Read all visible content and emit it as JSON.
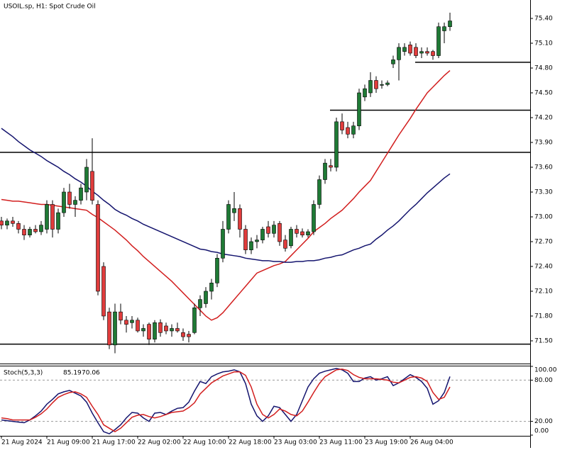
{
  "chart_data": [
    {
      "type": "candlestick",
      "title": "USOIL.sp, H1:  Spot Crude Oil",
      "categories": [
        "21 Aug 2024",
        null,
        null,
        null,
        null,
        null,
        null,
        null,
        "21 Aug 09:00",
        null,
        null,
        null,
        null,
        null,
        null,
        null,
        "21 Aug 17:00",
        null,
        null,
        null,
        null,
        null,
        null,
        null,
        "22 Aug 02:00",
        null,
        null,
        null,
        null,
        null,
        null,
        null,
        "22 Aug 10:00",
        null,
        null,
        null,
        null,
        null,
        null,
        null,
        "22 Aug 18:00",
        null,
        null,
        null,
        null,
        null,
        null,
        null,
        "23 Aug 03:00",
        null,
        null,
        null,
        null,
        null,
        null,
        null,
        "23 Aug 11:00",
        null,
        null,
        null,
        null,
        null,
        null,
        null,
        "23 Aug 19:00",
        null,
        null,
        null,
        null,
        null,
        null,
        null,
        "26 Aug 04:00",
        null,
        null,
        null,
        null,
        null,
        null,
        null
      ],
      "open": [
        72.95,
        72.9,
        72.95,
        72.92,
        72.85,
        72.78,
        72.85,
        72.82,
        72.85,
        73.15,
        72.85,
        73.05,
        73.3,
        73.15,
        73.2,
        73.3,
        73.55,
        73.15,
        72.4,
        71.85,
        71.45,
        71.85,
        71.75,
        71.72,
        71.75,
        71.62,
        71.7,
        71.52,
        71.72,
        71.68,
        71.62,
        71.65,
        71.6,
        71.58,
        71.6,
        71.9,
        71.95,
        72.1,
        72.2,
        72.5,
        72.85,
        73.05,
        73.1,
        72.85,
        72.6,
        72.7,
        72.72,
        72.88,
        72.8,
        72.92,
        72.72,
        72.65,
        72.85,
        72.82,
        72.78,
        72.82,
        73.15,
        73.45,
        73.62,
        73.6,
        74.15,
        74.08,
        74.0,
        74.1,
        74.45,
        74.5,
        74.65,
        74.6,
        74.6,
        74.85,
        74.9,
        75.0,
        75.08,
        75.05,
        74.98,
        75.0,
        75.0,
        74.95,
        75.25,
        75.3
      ],
      "high": [
        73.0,
        72.98,
        73.0,
        72.95,
        72.9,
        72.88,
        72.9,
        72.95,
        73.2,
        73.2,
        73.1,
        73.35,
        73.4,
        73.25,
        73.4,
        73.7,
        73.95,
        73.2,
        72.45,
        71.9,
        71.95,
        71.95,
        71.8,
        71.8,
        71.78,
        71.7,
        71.72,
        71.75,
        71.76,
        71.72,
        71.7,
        71.72,
        71.65,
        71.62,
        71.95,
        72.05,
        72.15,
        72.25,
        72.55,
        72.95,
        73.2,
        73.3,
        73.15,
        72.9,
        72.75,
        72.78,
        72.88,
        72.95,
        72.95,
        72.95,
        72.78,
        72.88,
        72.9,
        72.86,
        72.85,
        73.2,
        73.5,
        73.7,
        73.7,
        74.2,
        74.25,
        74.15,
        74.15,
        74.55,
        74.6,
        74.75,
        74.7,
        74.65,
        74.65,
        74.95,
        75.1,
        75.1,
        75.12,
        75.1,
        75.05,
        75.05,
        75.02,
        75.35,
        75.35,
        75.47
      ],
      "low": [
        72.85,
        72.85,
        72.88,
        72.8,
        72.72,
        72.75,
        72.8,
        72.78,
        72.8,
        72.75,
        72.8,
        73.0,
        73.1,
        73.0,
        73.15,
        73.2,
        73.15,
        72.05,
        71.75,
        71.4,
        71.35,
        71.7,
        71.6,
        71.65,
        71.6,
        71.55,
        71.45,
        71.48,
        71.55,
        71.58,
        71.55,
        71.6,
        71.5,
        71.48,
        71.58,
        71.8,
        71.9,
        72.0,
        72.15,
        72.45,
        72.8,
        72.95,
        72.75,
        72.55,
        72.55,
        72.62,
        72.68,
        72.75,
        72.75,
        72.65,
        72.58,
        72.62,
        72.75,
        72.75,
        72.75,
        72.78,
        73.1,
        73.4,
        73.55,
        73.55,
        74.0,
        73.95,
        73.95,
        74.05,
        74.4,
        74.45,
        74.5,
        74.55,
        74.58,
        74.8,
        74.65,
        74.95,
        74.95,
        74.92,
        74.92,
        74.95,
        74.9,
        74.92,
        75.1,
        75.25
      ],
      "close": [
        72.9,
        72.95,
        72.92,
        72.85,
        72.78,
        72.85,
        72.82,
        72.9,
        73.15,
        72.85,
        73.05,
        73.3,
        73.15,
        73.2,
        73.35,
        73.6,
        73.2,
        72.1,
        71.8,
        71.45,
        71.85,
        71.75,
        71.7,
        71.75,
        71.62,
        71.65,
        71.52,
        71.72,
        71.6,
        71.62,
        71.65,
        71.62,
        71.55,
        71.55,
        71.9,
        72.0,
        72.1,
        72.2,
        72.5,
        72.85,
        73.15,
        73.1,
        72.85,
        72.6,
        72.7,
        72.72,
        72.85,
        72.8,
        72.9,
        72.7,
        72.62,
        72.85,
        72.8,
        72.78,
        72.82,
        73.15,
        73.45,
        73.65,
        73.6,
        74.15,
        74.05,
        74.0,
        74.1,
        74.5,
        74.55,
        74.65,
        74.55,
        74.6,
        74.62,
        74.9,
        75.05,
        75.05,
        74.98,
        74.95,
        75.0,
        74.98,
        74.95,
        75.3,
        75.3,
        75.37
      ],
      "up_color": "#1f7a35",
      "down_color": "#e03c3c",
      "lines": [
        {
          "color": "#d21e1e",
          "values": [
            73.21,
            73.2,
            73.19,
            73.19,
            73.18,
            73.17,
            73.16,
            73.15,
            73.15,
            73.14,
            73.13,
            73.12,
            73.11,
            73.1,
            73.09,
            73.08,
            73.03,
            72.99,
            72.94,
            72.89,
            72.84,
            72.78,
            72.72,
            72.65,
            72.59,
            72.52,
            72.46,
            72.4,
            72.34,
            72.28,
            72.22,
            72.15,
            72.08,
            72.01,
            71.94,
            71.87,
            71.8,
            71.75,
            71.78,
            71.84,
            71.92,
            72.0,
            72.08,
            72.16,
            72.24,
            72.32,
            72.35,
            72.38,
            72.41,
            72.43,
            72.46,
            72.53,
            72.6,
            72.67,
            72.74,
            72.82,
            72.87,
            72.92,
            72.98,
            73.03,
            73.08,
            73.15,
            73.22,
            73.3,
            73.37,
            73.44,
            73.55,
            73.66,
            73.77,
            73.88,
            73.99,
            74.09,
            74.19,
            74.3,
            74.4,
            74.5,
            74.57,
            74.64,
            74.71,
            74.77
          ]
        },
        {
          "color": "#14146e",
          "values": [
            74.07,
            74.02,
            73.97,
            73.91,
            73.86,
            73.81,
            73.77,
            73.73,
            73.68,
            73.64,
            73.6,
            73.55,
            73.51,
            73.46,
            73.42,
            73.37,
            73.31,
            73.26,
            73.2,
            73.15,
            73.09,
            73.05,
            73.02,
            72.98,
            72.95,
            72.91,
            72.88,
            72.85,
            72.82,
            72.79,
            72.76,
            72.73,
            72.7,
            72.67,
            72.64,
            72.61,
            72.6,
            72.58,
            72.57,
            72.55,
            72.54,
            72.53,
            72.52,
            72.5,
            72.49,
            72.48,
            72.47,
            72.47,
            72.46,
            72.46,
            72.45,
            72.45,
            72.46,
            72.46,
            72.47,
            72.47,
            72.48,
            72.5,
            72.51,
            72.53,
            72.54,
            72.57,
            72.6,
            72.62,
            72.65,
            72.67,
            72.73,
            72.78,
            72.84,
            72.89,
            72.95,
            73.02,
            73.09,
            73.15,
            73.22,
            73.29,
            73.35,
            73.41,
            73.47,
            73.52
          ]
        }
      ],
      "hlines": [
        {
          "value": 74.87,
          "from": 73
        },
        {
          "value": 74.29,
          "from": 58
        },
        {
          "value": 73.78
        },
        {
          "value": 71.46
        }
      ],
      "ylim": [
        71.234,
        75.623
      ],
      "yticks": [
        {
          "value": 71.5,
          "label": "71.50"
        },
        {
          "value": 71.8,
          "label": "71.80"
        },
        {
          "value": 72.1,
          "label": "72.10"
        },
        {
          "value": 72.4,
          "label": "72.40"
        },
        {
          "value": 72.7,
          "label": "72.70"
        },
        {
          "value": 73.0,
          "label": "73.00"
        },
        {
          "value": 73.3,
          "label": "73.30"
        },
        {
          "value": 73.6,
          "label": "73.60"
        },
        {
          "value": 73.9,
          "label": "73.90"
        },
        {
          "value": 74.2,
          "label": "74.20"
        },
        {
          "value": 74.5,
          "label": "74.50"
        },
        {
          "value": 74.8,
          "label": "74.80"
        },
        {
          "value": 75.1,
          "label": "75.10"
        },
        {
          "value": 75.4,
          "label": "75.40"
        }
      ]
    },
    {
      "type": "line",
      "title": "Stoch(5,3,3)",
      "ylim": [
        0,
        100
      ],
      "yticks": [
        {
          "value": 0,
          "label": "0.00"
        },
        {
          "value": 20,
          "label": "20.00"
        },
        {
          "value": 80,
          "label": "80.00"
        },
        {
          "value": 100,
          "label": "100.00"
        }
      ],
      "grid": "dashed",
      "series": [
        {
          "color": "#14146e",
          "values": [
            22,
            21,
            20,
            19,
            18,
            22,
            28,
            35,
            45,
            52,
            60,
            63,
            65,
            61,
            57,
            48,
            32,
            18,
            5,
            2,
            8,
            15,
            25,
            33,
            32,
            25,
            20,
            32,
            33,
            30,
            35,
            39,
            40,
            48,
            64,
            78,
            75,
            85,
            89,
            92,
            93,
            95,
            92,
            75,
            45,
            28,
            20,
            28,
            42,
            40,
            30,
            20,
            30,
            50,
            70,
            82,
            90,
            93,
            95,
            97,
            95,
            90,
            78,
            78,
            83,
            85,
            80,
            82,
            85,
            72,
            76,
            82,
            88,
            84,
            78,
            68,
            45,
            50,
            62,
            85.19
          ]
        },
        {
          "color": "#d21e1e",
          "values": [
            25,
            24,
            22,
            22,
            22,
            22,
            26,
            31,
            38,
            47,
            55,
            59,
            62,
            63,
            60,
            55,
            42,
            30,
            15,
            10,
            5,
            10,
            18,
            26,
            29,
            30,
            27,
            25,
            27,
            30,
            33,
            34,
            35,
            40,
            47,
            60,
            68,
            76,
            81,
            86,
            89,
            92,
            92,
            87,
            70,
            45,
            30,
            25,
            30,
            38,
            35,
            30,
            28,
            35,
            48,
            62,
            75,
            85,
            90,
            95,
            96,
            94,
            88,
            84,
            82,
            82,
            82,
            81,
            80,
            77,
            76,
            80,
            84,
            85,
            83,
            78,
            62,
            52,
            55,
            70.06
          ]
        }
      ]
    }
  ]
}
